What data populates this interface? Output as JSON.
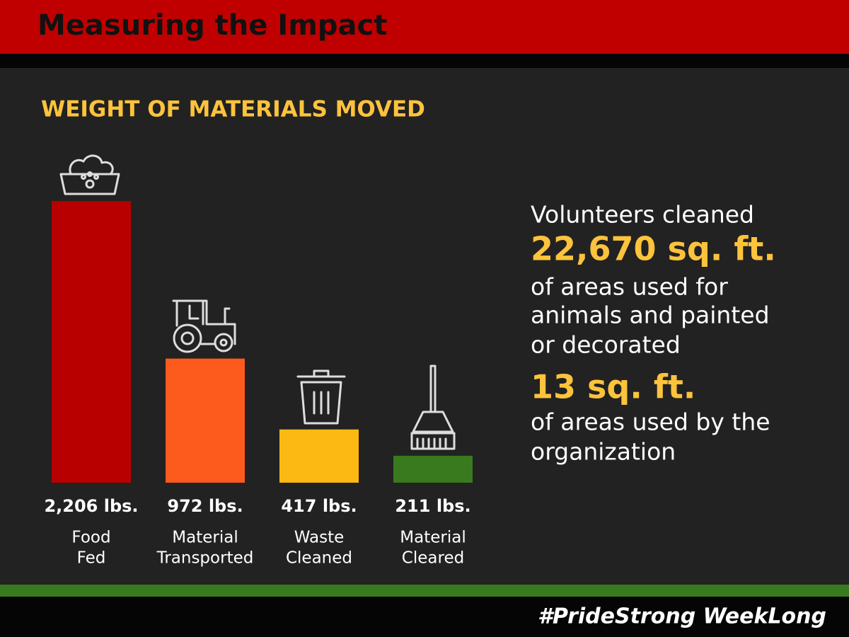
{
  "header": {
    "title": "Measuring the Impact"
  },
  "chart_data": {
    "type": "bar",
    "title": "WEIGHT OF MATERIALS MOVED",
    "categories": [
      [
        "Food",
        "Fed"
      ],
      [
        "Material",
        "Transported"
      ],
      [
        "Waste",
        "Cleaned"
      ],
      [
        "Material",
        "Cleared"
      ]
    ],
    "values": [
      2206,
      972,
      417,
      211
    ],
    "value_labels": [
      "2,206 lbs.",
      "972 lbs.",
      "417 lbs.",
      "211 lbs."
    ],
    "colors": [
      "#b80000",
      "#fd5a1e",
      "#fdb913",
      "#3a7a1e"
    ]
  },
  "summary": {
    "lines": [
      {
        "text": "Volunteers cleaned",
        "highlight": false
      },
      {
        "text": "22,670 sq. ft.",
        "highlight": true
      },
      {
        "text": "of areas used for",
        "highlight": false
      },
      {
        "text": "animals and painted",
        "highlight": false
      },
      {
        "text": "or decorated",
        "highlight": false
      },
      {
        "text": "13 sq. ft.",
        "highlight": true
      },
      {
        "text": "of areas used by the",
        "highlight": false
      },
      {
        "text": "organization",
        "highlight": false
      }
    ]
  },
  "footer": {
    "hashtag": "#PrideStrong WeekLong"
  }
}
